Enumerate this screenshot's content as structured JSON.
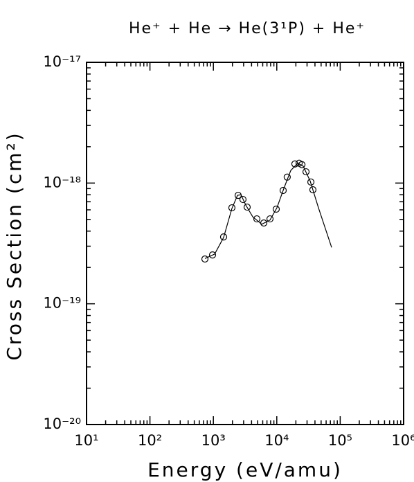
{
  "chart_data": {
    "type": "scatter",
    "title": "He⁺ + He → He(3¹P) + He⁺",
    "xlabel": "Energy (eV/amu)",
    "ylabel": "Cross Section (cm²)",
    "xscale": "log",
    "yscale": "log",
    "xlim": [
      10,
      1000000
    ],
    "ylim": [
      1e-20,
      1e-17
    ],
    "xticks": [
      {
        "value": 10,
        "label": "10¹"
      },
      {
        "value": 100,
        "label": "10²"
      },
      {
        "value": 1000,
        "label": "10³"
      },
      {
        "value": 10000,
        "label": "10⁴"
      },
      {
        "value": 100000,
        "label": "10⁵"
      },
      {
        "value": 1000000,
        "label": "10⁶"
      }
    ],
    "yticks": [
      {
        "value": 1e-20,
        "label": "10⁻²⁰"
      },
      {
        "value": 1e-19,
        "label": "10⁻¹⁹"
      },
      {
        "value": 1e-18,
        "label": "10⁻¹⁸"
      },
      {
        "value": 1e-17,
        "label": "10⁻¹⁷"
      }
    ],
    "color": "#000000",
    "series": [
      {
        "mode": "markers",
        "marker": "circle",
        "x": [
          736,
          970,
          1450,
          1960,
          2460,
          2930,
          3410,
          4850,
          6240,
          7820,
          9800,
          12600,
          14600,
          19300,
          22500,
          24900,
          28900,
          34500,
          37100
        ],
        "values": [
          2.35e-19,
          2.54e-19,
          3.58e-19,
          6.24e-19,
          7.91e-19,
          7.31e-19,
          6.32e-19,
          5.05e-19,
          4.67e-19,
          5.05e-19,
          6.08e-19,
          8.69e-19,
          1.12e-18,
          1.44e-18,
          1.46e-18,
          1.42e-18,
          1.24e-18,
          1.02e-18,
          8.8e-19
        ]
      },
      {
        "mode": "line",
        "x": [
          736,
          1047,
          1450,
          1960,
          2400,
          2720,
          3240,
          4170,
          5780,
          7820,
          10050,
          12900,
          16600,
          21400,
          26100,
          33600,
          45400,
          73300
        ],
        "values": [
          2.37e-19,
          2.58e-19,
          3.54e-19,
          6.16e-19,
          7.91e-19,
          8e-19,
          6.58e-19,
          5.26e-19,
          4.56e-19,
          4.94e-19,
          6.24e-19,
          8.99e-19,
          1.27e-18,
          1.46e-18,
          1.38e-18,
          1.04e-18,
          6.24e-19,
          2.93e-19
        ]
      }
    ]
  }
}
